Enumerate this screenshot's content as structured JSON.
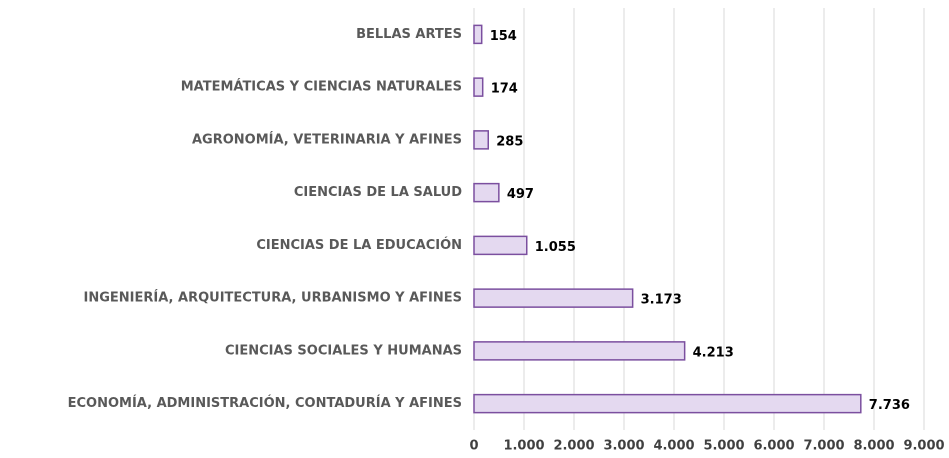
{
  "chart_data": {
    "type": "barh",
    "categories": [
      "BELLAS ARTES",
      "MATEMÁTICAS Y CIENCIAS NATURALES",
      "AGRONOMÍA, VETERINARIA Y AFINES",
      "CIENCIAS DE LA SALUD",
      "CIENCIAS DE LA EDUCACIÓN",
      "INGENIERÍA, ARQUITECTURA, URBANISMO Y AFINES",
      "CIENCIAS SOCIALES Y HUMANAS",
      "ECONOMÍA, ADMINISTRACIÓN, CONTADURÍA Y AFINES"
    ],
    "values": [
      154,
      174,
      285,
      497,
      1055,
      3173,
      4213,
      7736
    ],
    "value_labels": [
      "154",
      "174",
      "285",
      "497",
      "1.055",
      "3.173",
      "4.213",
      "7.736"
    ],
    "color": "#e4d9f0",
    "edge_color": "#7b4f9f",
    "xlim": [
      0,
      9000
    ],
    "xticks": [
      0,
      {
        "value": 1000,
        "label": "1.000"
      },
      {
        "value": 2000,
        "label": "2.000"
      },
      {
        "value": 3000,
        "label": "3.000"
      },
      {
        "value": 4000,
        "label": "4.000"
      },
      {
        "value": 5000,
        "label": "5.000"
      },
      {
        "value": 6000,
        "label": "6.000"
      },
      {
        "value": 7000,
        "label": "7.000"
      },
      {
        "value": 8000,
        "label": "8.000"
      },
      {
        "value": 9000,
        "label": "9.000"
      }
    ],
    "grid": true
  }
}
